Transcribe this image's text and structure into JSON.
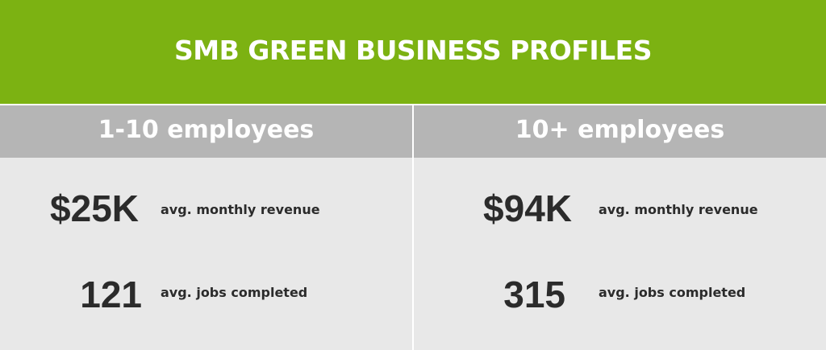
{
  "header": {
    "title": "SMB GREEN BUSINESS PROFILES"
  },
  "columns": [
    {
      "heading": "1-10 employees",
      "revenue_value": "$25K",
      "revenue_label": "avg. monthly revenue",
      "jobs_value": "121",
      "jobs_label": "avg. jobs completed"
    },
    {
      "heading": "10+ employees",
      "revenue_value": "$94K",
      "revenue_label": "avg. monthly revenue",
      "jobs_value": "315",
      "jobs_label": "avg. jobs completed"
    }
  ],
  "colors": {
    "banner": "#7cb212",
    "column_header": "#b5b5b5",
    "column_body": "#e8e8e8",
    "text": "#2b2b2b"
  }
}
